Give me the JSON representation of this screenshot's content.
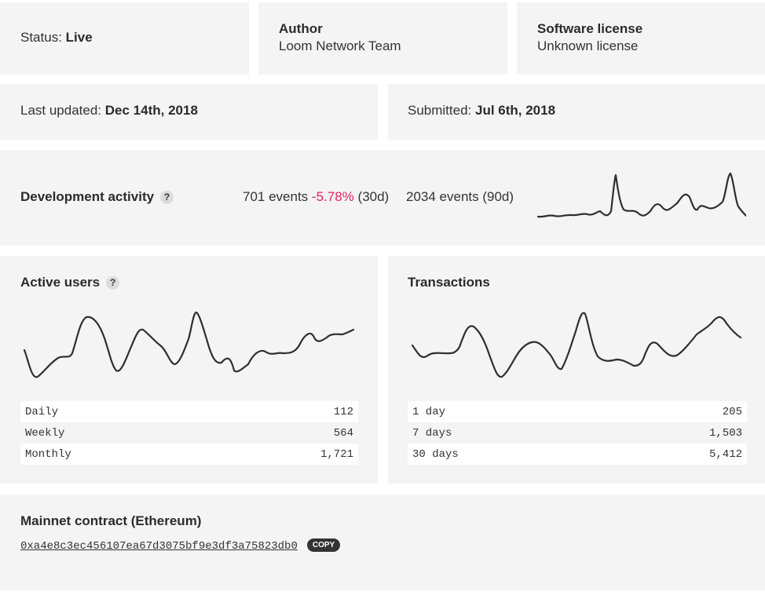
{
  "status": {
    "label": "Status:",
    "value": "Live"
  },
  "author": {
    "label": "Author",
    "value": "Loom Network Team"
  },
  "license": {
    "label": "Software license",
    "value": "Unknown license"
  },
  "last_updated": {
    "label": "Last updated:",
    "value": "Dec 14th, 2018"
  },
  "submitted": {
    "label": "Submitted:",
    "value": "Jul 6th, 2018"
  },
  "dev_activity": {
    "title": "Development activity",
    "help": "?",
    "events_30d": "701 events",
    "change_30d": "-5.78%",
    "period_30d": "(30d)",
    "events_90d": "2034 events (90d)"
  },
  "active_users": {
    "title": "Active users",
    "help": "?",
    "rows": [
      {
        "label": "Daily",
        "value": "112"
      },
      {
        "label": "Weekly",
        "value": "564"
      },
      {
        "label": "Monthly",
        "value": "1,721"
      }
    ]
  },
  "transactions": {
    "title": "Transactions",
    "rows": [
      {
        "label": "1 day",
        "value": "205"
      },
      {
        "label": "7 days",
        "value": "1,503"
      },
      {
        "label": "30 days",
        "value": "5,412"
      }
    ]
  },
  "contract": {
    "title": "Mainnet contract (Ethereum)",
    "address": "0xa4e8c3ec456107ea67d3075bf9e3df3a75823db0",
    "copy_label": "COPY"
  },
  "colors": {
    "negative": "#e0245e",
    "card": "#f4f4f4",
    "line": "#2f2f2f"
  }
}
